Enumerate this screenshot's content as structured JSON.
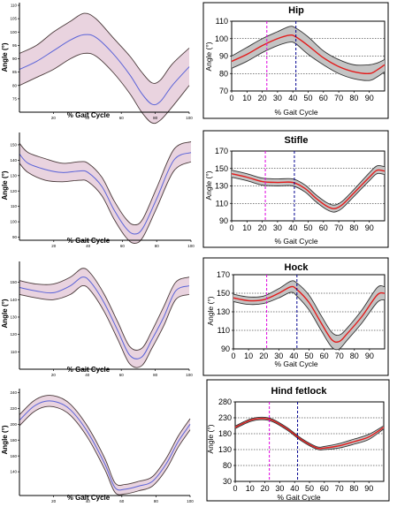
{
  "colors": {
    "left_band_fill": "#e9d3df",
    "left_band_edge": "#4a3a3a",
    "left_mean": "#5a63d8",
    "right_band_fill": "#c4c4c4",
    "right_band_edge": "#333333",
    "right_mean": "#e31b1b",
    "magenta_marker": "#e000e0",
    "blue_marker": "#000090",
    "grid": "#000000"
  },
  "chart_data": [
    {
      "id": "left-hip",
      "type": "line",
      "panel": "left",
      "title": "",
      "xlabel": "% Gait Cycle",
      "ylabel": "Angle (°)",
      "xlim": [
        0,
        100
      ],
      "ylim": [
        70,
        111
      ],
      "xticks": [
        20,
        40,
        60,
        80,
        100
      ],
      "yticks": [
        75,
        80,
        85,
        90,
        95,
        100,
        105,
        110
      ],
      "grid": false,
      "x": [
        0,
        10,
        20,
        30,
        38,
        45,
        55,
        65,
        72,
        78,
        83,
        90,
        100
      ],
      "mean": [
        86,
        89,
        93,
        97,
        99,
        98,
        92,
        84,
        77,
        73,
        74,
        80,
        87
      ],
      "upper": [
        92,
        95,
        100,
        104,
        107,
        105,
        98,
        91,
        85,
        81,
        82,
        88,
        94
      ],
      "lower": [
        80,
        83,
        86,
        90,
        92,
        91,
        85,
        77,
        70,
        66,
        67,
        72,
        80
      ]
    },
    {
      "id": "right-hip",
      "type": "line",
      "panel": "right",
      "title": "Hip",
      "xlabel": "% Gait Cycle",
      "ylabel": "Angle (°)",
      "xlim": [
        0,
        100
      ],
      "ylim": [
        70,
        110
      ],
      "xticks": [
        0,
        10,
        20,
        30,
        40,
        50,
        60,
        70,
        80,
        90
      ],
      "yticks": [
        70,
        80,
        90,
        100,
        110
      ],
      "grid": true,
      "markers": [
        23,
        42
      ],
      "x": [
        0,
        10,
        20,
        30,
        38,
        42,
        50,
        60,
        70,
        80,
        90,
        95,
        100
      ],
      "mean": [
        87,
        91,
        96,
        100,
        102,
        101,
        96,
        89,
        84,
        81,
        80,
        82,
        85
      ],
      "upper": [
        90,
        95,
        100,
        104,
        107,
        106,
        101,
        93,
        88,
        85,
        85,
        86,
        88
      ],
      "lower": [
        83,
        87,
        92,
        96,
        98,
        97,
        91,
        85,
        80,
        77,
        76,
        78,
        81
      ]
    },
    {
      "id": "left-stifle",
      "type": "line",
      "panel": "left",
      "title": "",
      "xlabel": "% Gait Cycle",
      "ylabel": "Angle (°)",
      "xlim": [
        0,
        100
      ],
      "ylim": [
        88,
        158
      ],
      "xticks": [
        20,
        40,
        60,
        80,
        100
      ],
      "yticks": [
        90,
        100,
        110,
        120,
        130,
        140,
        150
      ],
      "grid": false,
      "x": [
        0,
        5,
        15,
        25,
        35,
        40,
        48,
        55,
        62,
        67,
        72,
        80,
        90,
        100
      ],
      "mean": [
        144,
        138,
        134,
        132,
        133,
        132,
        123,
        108,
        96,
        92,
        96,
        115,
        140,
        145
      ],
      "upper": [
        151,
        145,
        141,
        138,
        139,
        138,
        129,
        114,
        102,
        98,
        102,
        122,
        147,
        152
      ],
      "lower": [
        138,
        132,
        127,
        126,
        127,
        126,
        117,
        102,
        90,
        86,
        90,
        109,
        133,
        139
      ]
    },
    {
      "id": "right-stifle",
      "type": "line",
      "panel": "right",
      "title": "Stifle",
      "xlabel": "% Gait Cycle",
      "ylabel": "Angle (°)",
      "xlim": [
        0,
        100
      ],
      "ylim": [
        90,
        170
      ],
      "xticks": [
        0,
        10,
        20,
        30,
        40,
        50,
        60,
        70,
        80,
        90
      ],
      "yticks": [
        90,
        110,
        130,
        150,
        170
      ],
      "grid": true,
      "markers": [
        22,
        41
      ],
      "x": [
        0,
        10,
        20,
        30,
        40,
        48,
        55,
        62,
        67,
        72,
        80,
        90,
        95,
        100
      ],
      "mean": [
        144,
        140,
        135,
        134,
        134,
        127,
        116,
        107,
        104,
        108,
        122,
        140,
        148,
        147
      ],
      "upper": [
        148,
        144,
        139,
        138,
        138,
        131,
        120,
        111,
        108,
        112,
        126,
        145,
        153,
        152
      ],
      "lower": [
        140,
        136,
        131,
        130,
        130,
        123,
        112,
        103,
        100,
        104,
        118,
        136,
        144,
        143
      ]
    },
    {
      "id": "left-hock",
      "type": "line",
      "panel": "left",
      "title": "",
      "xlabel": "% Gait Cycle",
      "ylabel": "Angle (°)",
      "xlim": [
        0,
        100
      ],
      "ylim": [
        100,
        162
      ],
      "xticks": [
        20,
        40,
        60,
        80,
        100
      ],
      "yticks": [
        110,
        120,
        130,
        140,
        150
      ],
      "grid": false,
      "x": [
        0,
        10,
        20,
        30,
        37,
        42,
        50,
        58,
        65,
        72,
        78,
        85,
        92,
        100
      ],
      "mean": [
        147,
        145,
        144,
        148,
        153,
        150,
        138,
        122,
        108,
        107,
        117,
        130,
        145,
        148
      ],
      "upper": [
        151,
        149,
        149,
        153,
        158,
        155,
        143,
        127,
        113,
        112,
        122,
        136,
        150,
        153
      ],
      "lower": [
        143,
        141,
        140,
        143,
        148,
        145,
        133,
        117,
        103,
        102,
        112,
        125,
        140,
        143
      ]
    },
    {
      "id": "right-hock",
      "type": "line",
      "panel": "right",
      "title": "Hock",
      "xlabel": "% Gait Cycle",
      "ylabel": "Angle (°)",
      "xlim": [
        0,
        100
      ],
      "ylim": [
        90,
        170
      ],
      "xticks": [
        0,
        10,
        20,
        30,
        40,
        50,
        60,
        70,
        80,
        90
      ],
      "yticks": [
        90,
        110,
        130,
        150,
        170
      ],
      "grid": true,
      "markers": [
        22,
        42
      ],
      "x": [
        0,
        10,
        20,
        30,
        38,
        42,
        50,
        58,
        65,
        70,
        75,
        85,
        95,
        100
      ],
      "mean": [
        145,
        142,
        143,
        150,
        157,
        154,
        140,
        118,
        100,
        98,
        106,
        125,
        148,
        150
      ],
      "upper": [
        149,
        146,
        147,
        155,
        163,
        161,
        148,
        126,
        108,
        105,
        112,
        132,
        156,
        157
      ],
      "lower": [
        141,
        138,
        139,
        145,
        151,
        147,
        132,
        110,
        92,
        90,
        99,
        118,
        140,
        143
      ]
    },
    {
      "id": "left-hind-fetlock",
      "type": "line",
      "panel": "left",
      "title": "",
      "xlabel": "% Gait Cycle",
      "ylabel": "Angle (°)",
      "xlim": [
        0,
        100
      ],
      "ylim": [
        110,
        245
      ],
      "xticks": [
        20,
        40,
        60,
        80,
        100
      ],
      "yticks": [
        140,
        160,
        180,
        200,
        220,
        240
      ],
      "grid": false,
      "x": [
        0,
        8,
        15,
        22,
        30,
        40,
        50,
        56,
        62,
        70,
        78,
        86,
        93,
        100
      ],
      "mean": [
        205,
        222,
        229,
        228,
        218,
        190,
        150,
        120,
        118,
        122,
        128,
        150,
        178,
        200
      ],
      "upper": [
        212,
        229,
        236,
        235,
        225,
        197,
        157,
        126,
        124,
        128,
        134,
        157,
        185,
        207
      ],
      "lower": [
        198,
        215,
        222,
        221,
        211,
        183,
        143,
        114,
        112,
        116,
        122,
        143,
        171,
        193
      ]
    },
    {
      "id": "right-hind-fetlock",
      "type": "line",
      "panel": "right",
      "title": "Hind fetlock",
      "xlabel": "% Gait Cycle",
      "ylabel": "Angle (°)",
      "xlim": [
        0,
        100
      ],
      "ylim": [
        30,
        280
      ],
      "xticks": [
        0,
        10,
        20,
        30,
        40,
        50,
        60,
        70,
        80,
        90
      ],
      "yticks": [
        30,
        80,
        130,
        180,
        230,
        280
      ],
      "grid": true,
      "markers": [
        23,
        42
      ],
      "x": [
        0,
        10,
        18,
        25,
        35,
        45,
        55,
        60,
        70,
        80,
        90,
        100
      ],
      "mean": [
        200,
        222,
        228,
        222,
        195,
        160,
        135,
        135,
        142,
        155,
        170,
        200
      ],
      "upper": [
        204,
        226,
        232,
        226,
        199,
        164,
        139,
        140,
        149,
        163,
        178,
        205
      ],
      "lower": [
        196,
        218,
        224,
        218,
        191,
        156,
        131,
        130,
        135,
        147,
        162,
        195
      ]
    }
  ]
}
